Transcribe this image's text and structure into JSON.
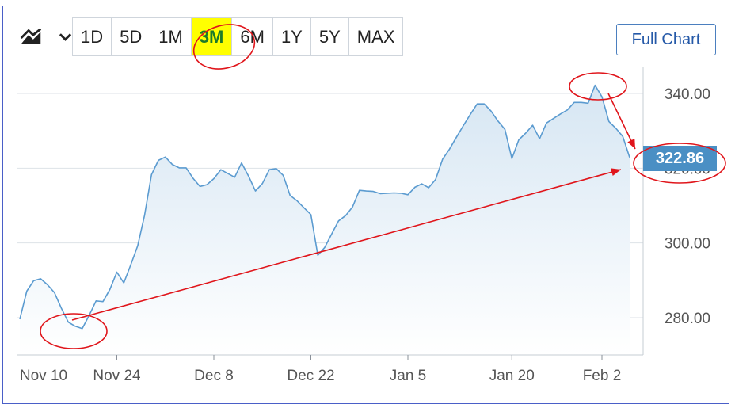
{
  "toolbar": {
    "chart_type_icon": "area-chart-icon",
    "ranges": [
      "1D",
      "5D",
      "1M",
      "3M",
      "6M",
      "1Y",
      "5Y",
      "MAX"
    ],
    "active_range": "3M",
    "full_chart_label": "Full Chart"
  },
  "price_badge": "322.86",
  "colors": {
    "line": "#5b9bd0",
    "area_top": "#d6e6f3",
    "annotation": "#e0151b",
    "highlight": "#ffff00",
    "badge": "#4a8fc4"
  },
  "chart_data": {
    "type": "area",
    "title": "",
    "xlabel": "",
    "ylabel": "",
    "x_ticks": [
      "Nov 10",
      "Nov 24",
      "Dec 8",
      "Dec 22",
      "Jan 5",
      "Jan 20",
      "Feb 2"
    ],
    "y_ticks": [
      280,
      300,
      320,
      340
    ],
    "y_tick_labels": [
      "280.00",
      "300.00",
      "320.00",
      "340.00"
    ],
    "ylim": [
      271,
      351
    ],
    "x_range": [
      "2023-11-10",
      "2024-02-06"
    ],
    "grid": true,
    "last_price": 322.86,
    "x": [
      "2023-11-10",
      "2023-11-11",
      "2023-11-12",
      "2023-11-13",
      "2023-11-14",
      "2023-11-15",
      "2023-11-16",
      "2023-11-17",
      "2023-11-18",
      "2023-11-19",
      "2023-11-20",
      "2023-11-21",
      "2023-11-22",
      "2023-11-23",
      "2023-11-24",
      "2023-11-25",
      "2023-11-26",
      "2023-11-27",
      "2023-11-28",
      "2023-11-29",
      "2023-11-30",
      "2023-12-01",
      "2023-12-02",
      "2023-12-03",
      "2023-12-04",
      "2023-12-05",
      "2023-12-06",
      "2023-12-07",
      "2023-12-08",
      "2023-12-09",
      "2023-12-10",
      "2023-12-11",
      "2023-12-12",
      "2023-12-13",
      "2023-12-14",
      "2023-12-15",
      "2023-12-16",
      "2023-12-17",
      "2023-12-18",
      "2023-12-19",
      "2023-12-20",
      "2023-12-21",
      "2023-12-22",
      "2023-12-23",
      "2023-12-24",
      "2023-12-25",
      "2023-12-26",
      "2023-12-27",
      "2023-12-28",
      "2023-12-29",
      "2023-12-30",
      "2023-12-31",
      "2024-01-01",
      "2024-01-02",
      "2024-01-03",
      "2024-01-04",
      "2024-01-05",
      "2024-01-06",
      "2024-01-07",
      "2024-01-08",
      "2024-01-09",
      "2024-01-10",
      "2024-01-11",
      "2024-01-12",
      "2024-01-13",
      "2024-01-14",
      "2024-01-15",
      "2024-01-16",
      "2024-01-17",
      "2024-01-18",
      "2024-01-19",
      "2024-01-20",
      "2024-01-21",
      "2024-01-22",
      "2024-01-23",
      "2024-01-24",
      "2024-01-25",
      "2024-01-26",
      "2024-01-27",
      "2024-01-28",
      "2024-01-29",
      "2024-01-30",
      "2024-01-31",
      "2024-02-01",
      "2024-02-02",
      "2024-02-03",
      "2024-02-04",
      "2024-02-05",
      "2024-02-06"
    ],
    "series": [
      {
        "values": [
          279.6,
          287.1,
          289.9,
          290.4,
          288.8,
          286.7,
          282.5,
          278.8,
          277.7,
          277.1,
          280.6,
          284.5,
          284.3,
          287.6,
          292.2,
          289.3,
          294.1,
          299.2,
          307.4,
          318.3,
          322.1,
          323.0,
          321.0,
          320.1,
          320.1,
          317.3,
          315.1,
          315.6,
          317.2,
          319.6,
          318.6,
          317.6,
          321.4,
          317.9,
          313.9,
          315.9,
          319.6,
          319.9,
          318.1,
          312.7,
          311.3,
          309.4,
          307.6,
          296.7,
          298.8,
          302.4,
          305.9,
          307.3,
          309.6,
          314.1,
          313.9,
          313.8,
          313.2,
          313.3,
          313.4,
          313.3,
          312.9,
          314.9,
          315.8,
          314.8,
          317.0,
          322.4,
          325.1,
          328.3,
          331.4,
          334.4,
          337.2,
          337.2,
          335.3,
          332.6,
          330.4,
          322.6,
          327.6,
          329.4,
          331.5,
          327.9,
          332.1,
          333.3,
          334.5,
          335.6,
          337.6,
          337.6,
          337.4,
          342.2,
          339.1,
          332.5,
          330.7,
          328.5,
          322.9
        ]
      }
    ],
    "annotations": [
      {
        "type": "circle",
        "target": "3M"
      },
      {
        "type": "circle",
        "target": "low",
        "value": 277.1
      },
      {
        "type": "circle",
        "target": "peak",
        "value": 342.2
      },
      {
        "type": "circle",
        "target": "last_price",
        "value": 322.86
      },
      {
        "type": "arrow",
        "from": "low",
        "to": "last_price"
      },
      {
        "type": "arrow",
        "from": "peak",
        "to": "last_price"
      }
    ]
  }
}
